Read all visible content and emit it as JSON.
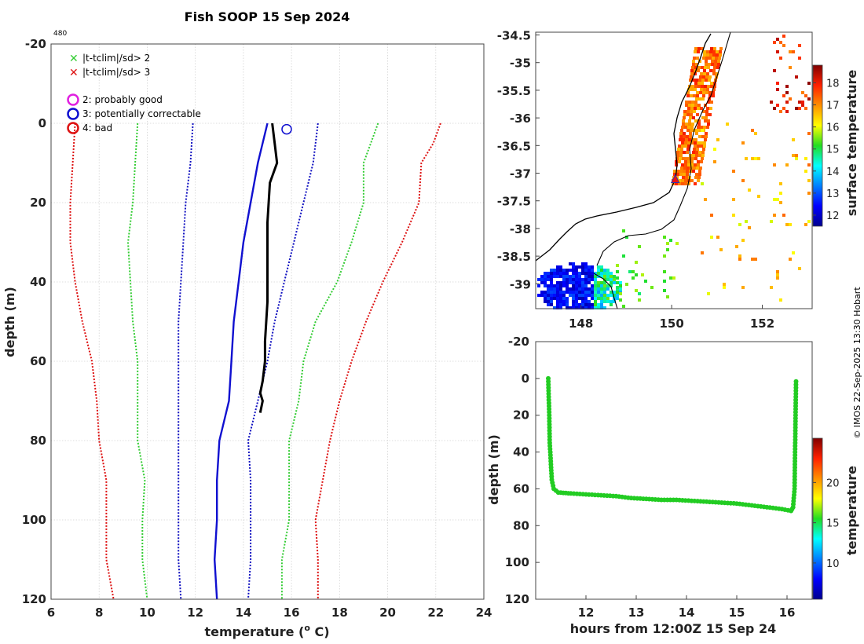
{
  "title": "Fish SOOP 15 Sep 2024",
  "corner_label": "480",
  "credit": "© IMOS 22-Sep-2025 13:30 Hobart",
  "colors": {
    "grid": "#d3d3d3",
    "sd2": "#33cc33",
    "sd3": "#dd1111",
    "profile": "#000000",
    "clim_solid": "#1010d0",
    "clim_dotted": "#1010c0",
    "flag2": "#e020e0",
    "flag3": "#1010d0",
    "flag4": "#dd1111",
    "track": "#22cc22",
    "coast": "#000000",
    "marker_tri": "#ee1111"
  },
  "legend": {
    "sd2": "|t-tclim|/sd> 2",
    "sd3": "|t-tclim|/sd> 3",
    "flag2": "2: probably good",
    "flag3": "3: potentially correctable",
    "flag4": "4: bad"
  },
  "chart_data": [
    {
      "type": "line",
      "name": "temperature-depth profile",
      "xlabel": "temperature (°C)",
      "xlabel_main": "temperature (",
      "xlabel_sup": "o",
      "xlabel_tail": " C)",
      "ylabel": "depth (m)",
      "xlim": [
        6,
        24
      ],
      "ylim": [
        -20,
        120
      ],
      "xticks": [
        6,
        8,
        10,
        12,
        14,
        16,
        18,
        20,
        22,
        24
      ],
      "yticks": [
        -20,
        0,
        20,
        40,
        60,
        80,
        100,
        120
      ],
      "series": [
        {
          "name": "clim-3sd-low",
          "style": "dotted",
          "color": "sd3",
          "points": [
            [
              7.0,
              0
            ],
            [
              6.9,
              10
            ],
            [
              6.8,
              20
            ],
            [
              6.8,
              30
            ],
            [
              7.0,
              40
            ],
            [
              7.3,
              50
            ],
            [
              7.7,
              60
            ],
            [
              7.9,
              70
            ],
            [
              8.0,
              80
            ],
            [
              8.3,
              90
            ],
            [
              8.3,
              100
            ],
            [
              8.3,
              110
            ],
            [
              8.6,
              120
            ]
          ]
        },
        {
          "name": "clim-2sd-low",
          "style": "dotted",
          "color": "sd2",
          "points": [
            [
              9.6,
              0
            ],
            [
              9.5,
              10
            ],
            [
              9.4,
              20
            ],
            [
              9.2,
              30
            ],
            [
              9.3,
              40
            ],
            [
              9.4,
              50
            ],
            [
              9.6,
              60
            ],
            [
              9.6,
              70
            ],
            [
              9.6,
              80
            ],
            [
              9.9,
              90
            ],
            [
              9.8,
              100
            ],
            [
              9.8,
              110
            ],
            [
              10.0,
              120
            ]
          ]
        },
        {
          "name": "clim-1sd-low",
          "style": "dotted",
          "color": "clim_dotted",
          "points": [
            [
              11.9,
              0
            ],
            [
              11.8,
              10
            ],
            [
              11.6,
              20
            ],
            [
              11.5,
              30
            ],
            [
              11.4,
              40
            ],
            [
              11.3,
              50
            ],
            [
              11.3,
              60
            ],
            [
              11.3,
              70
            ],
            [
              11.3,
              80
            ],
            [
              11.3,
              90
            ],
            [
              11.3,
              100
            ],
            [
              11.3,
              110
            ],
            [
              11.4,
              120
            ]
          ]
        },
        {
          "name": "climatology-mean",
          "style": "solid",
          "color": "clim_solid",
          "points": [
            [
              15.0,
              0
            ],
            [
              14.6,
              10
            ],
            [
              14.3,
              20
            ],
            [
              14.0,
              30
            ],
            [
              13.8,
              40
            ],
            [
              13.6,
              50
            ],
            [
              13.5,
              60
            ],
            [
              13.4,
              70
            ],
            [
              13.0,
              80
            ],
            [
              12.9,
              90
            ],
            [
              12.9,
              100
            ],
            [
              12.8,
              110
            ],
            [
              12.9,
              120
            ]
          ]
        },
        {
          "name": "clim-1sd-high",
          "style": "dotted",
          "color": "clim_dotted",
          "points": [
            [
              17.1,
              0
            ],
            [
              16.9,
              10
            ],
            [
              16.5,
              20
            ],
            [
              16.1,
              30
            ],
            [
              15.7,
              40
            ],
            [
              15.3,
              50
            ],
            [
              15.0,
              60
            ],
            [
              14.6,
              70
            ],
            [
              14.2,
              80
            ],
            [
              14.3,
              90
            ],
            [
              14.3,
              100
            ],
            [
              14.3,
              110
            ],
            [
              14.2,
              120
            ]
          ]
        },
        {
          "name": "clim-2sd-high",
          "style": "dotted",
          "color": "sd2",
          "points": [
            [
              19.6,
              0
            ],
            [
              19.3,
              5
            ],
            [
              19.0,
              10
            ],
            [
              19.0,
              20
            ],
            [
              18.5,
              30
            ],
            [
              17.9,
              40
            ],
            [
              17.0,
              50
            ],
            [
              16.5,
              60
            ],
            [
              16.3,
              70
            ],
            [
              15.9,
              80
            ],
            [
              15.9,
              90
            ],
            [
              15.9,
              100
            ],
            [
              15.6,
              110
            ],
            [
              15.6,
              120
            ]
          ]
        },
        {
          "name": "clim-3sd-high",
          "style": "dotted",
          "color": "sd3",
          "points": [
            [
              22.2,
              0
            ],
            [
              21.9,
              5
            ],
            [
              21.4,
              10
            ],
            [
              21.3,
              20
            ],
            [
              20.6,
              30
            ],
            [
              19.8,
              40
            ],
            [
              19.1,
              50
            ],
            [
              18.5,
              60
            ],
            [
              18.0,
              70
            ],
            [
              17.6,
              80
            ],
            [
              17.3,
              90
            ],
            [
              17.0,
              100
            ],
            [
              17.1,
              110
            ],
            [
              17.1,
              120
            ]
          ]
        },
        {
          "name": "observed-profile",
          "style": "solid",
          "color": "profile",
          "points": [
            [
              15.2,
              0
            ],
            [
              15.3,
              5
            ],
            [
              15.4,
              10
            ],
            [
              15.1,
              15
            ],
            [
              15.0,
              25
            ],
            [
              15.0,
              35
            ],
            [
              15.0,
              45
            ],
            [
              14.9,
              55
            ],
            [
              14.9,
              60
            ],
            [
              14.8,
              65
            ],
            [
              14.7,
              68
            ],
            [
              14.8,
              70
            ],
            [
              14.7,
              73
            ]
          ]
        }
      ],
      "flag_marker": {
        "x": 15.8,
        "y": 1.5,
        "flag": 3
      }
    },
    {
      "type": "heatmap",
      "name": "surface temperature map",
      "colorbar_label": "surface temperature",
      "xlim": [
        147,
        153.1
      ],
      "ylim": [
        -39.45,
        -34.45
      ],
      "xticks": [
        148,
        150,
        152
      ],
      "yticks": [
        -34.5,
        -35,
        -35.5,
        -36,
        -36.5,
        -37,
        -37.5,
        -38,
        -38.5,
        -39
      ],
      "colorbar_range": [
        11.5,
        18.8
      ],
      "colorbar_ticks": [
        12,
        13,
        14,
        15,
        16,
        17,
        18
      ],
      "ship_position": {
        "lon": 150.08,
        "lat": -37.1
      }
    },
    {
      "type": "scatter",
      "name": "depth vs time",
      "xlabel": "hours from 12:00Z 15 Sep 24",
      "ylabel": "depth (m)",
      "xlim": [
        11.0,
        16.5
      ],
      "ylim": [
        -20,
        120
      ],
      "xticks": [
        12,
        13,
        14,
        15,
        16
      ],
      "yticks": [
        -20,
        0,
        20,
        40,
        60,
        80,
        100,
        120
      ],
      "colorbar_label": "temperature",
      "colorbar_range": [
        5.5,
        25.5
      ],
      "colorbar_ticks": [
        10,
        15,
        20
      ],
      "track": [
        [
          11.25,
          0
        ],
        [
          11.26,
          10
        ],
        [
          11.27,
          20
        ],
        [
          11.28,
          35
        ],
        [
          11.3,
          45
        ],
        [
          11.32,
          55
        ],
        [
          11.36,
          60
        ],
        [
          11.45,
          62
        ],
        [
          11.7,
          62.5
        ],
        [
          12.0,
          63
        ],
        [
          12.3,
          63.5
        ],
        [
          12.6,
          64
        ],
        [
          12.9,
          65
        ],
        [
          13.2,
          65.5
        ],
        [
          13.5,
          66
        ],
        [
          13.8,
          66
        ],
        [
          14.1,
          66.5
        ],
        [
          14.4,
          67
        ],
        [
          14.7,
          67.5
        ],
        [
          15.0,
          68
        ],
        [
          15.3,
          69
        ],
        [
          15.6,
          70
        ],
        [
          15.9,
          71
        ],
        [
          16.08,
          72
        ],
        [
          16.12,
          70
        ],
        [
          16.15,
          60
        ],
        [
          16.16,
          40
        ],
        [
          16.17,
          20
        ],
        [
          16.18,
          0
        ]
      ]
    }
  ]
}
